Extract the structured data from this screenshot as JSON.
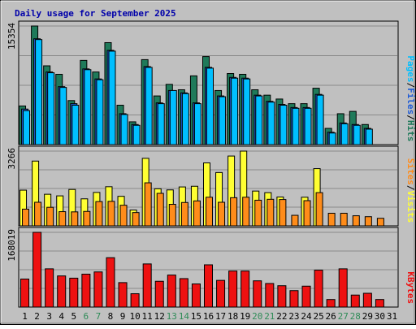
{
  "chart_data": {
    "type": "bar",
    "title": "Daily usage for September 2025",
    "colors": {
      "background": "#c0c0c0",
      "title": "#0000aa",
      "hits": "#1f7a5a",
      "files": "#1e9ee6",
      "pages": "#00bfff",
      "visits": "#ffff33",
      "sites": "#ff8c1a",
      "kbytes": "#ee1111",
      "weekend_label": "#2e8b57",
      "weekday_label": "#000000"
    },
    "categories": [
      "1",
      "2",
      "3",
      "4",
      "5",
      "6",
      "7",
      "8",
      "9",
      "10",
      "11",
      "12",
      "13",
      "14",
      "15",
      "16",
      "17",
      "18",
      "19",
      "20",
      "21",
      "22",
      "23",
      "24",
      "25",
      "26",
      "27",
      "28",
      "29",
      "30",
      "31"
    ],
    "weekend_days": [
      "6",
      "7",
      "13",
      "14",
      "20",
      "21",
      "27",
      "28"
    ],
    "panels": [
      {
        "id": "hits-panel",
        "ymax_label": "15354",
        "ymax": 15354,
        "legend": [
          {
            "text": "Pages",
            "color": "#00bfff"
          },
          {
            "text": "/",
            "color": "#000000"
          },
          {
            "text": "Files",
            "color": "#1e5bd6"
          },
          {
            "text": "/",
            "color": "#000000"
          },
          {
            "text": "Hits",
            "color": "#1f7a5a"
          }
        ],
        "series": [
          {
            "name": "Hits",
            "color": "#1f7a5a",
            "values": [
              5000,
              15354,
              10200,
              9100,
              5700,
              10900,
              9400,
              13200,
              5100,
              2950,
              11000,
              6300,
              7800,
              7100,
              8900,
              11400,
              7000,
              9200,
              9100,
              7100,
              6400,
              5900,
              5300,
              5300,
              7300,
              2100,
              4000,
              4300,
              2600,
              0,
              0
            ]
          },
          {
            "name": "Files",
            "color": "#1e5bd6",
            "values": [
              4600,
              13700,
              9400,
              7500,
              5300,
              9800,
              8500,
              12200,
              4000,
              2600,
              10100,
              5400,
              7000,
              6700,
              5400,
              10000,
              6300,
              8700,
              8600,
              6400,
              5600,
              5200,
              4800,
              4800,
              6500,
              1600,
              2800,
              2600,
              2100,
              0,
              0
            ]
          },
          {
            "name": "Pages",
            "color": "#00bfff",
            "values": [
              4400,
              13600,
              9300,
              7400,
              5100,
              9700,
              8400,
              12100,
              3900,
              2500,
              10000,
              5300,
              7000,
              6600,
              5300,
              9900,
              6200,
              8600,
              8500,
              6300,
              5500,
              5100,
              4700,
              4700,
              6400,
              1500,
              2700,
              2500,
              2000,
              0,
              0
            ]
          }
        ]
      },
      {
        "id": "visits-panel",
        "ymax_label": "3266",
        "ymax": 3266,
        "legend": [
          {
            "text": "Sites",
            "color": "#ff8c1a"
          },
          {
            "text": "/",
            "color": "#000000"
          },
          {
            "text": "Visits",
            "color": "#ffff33"
          }
        ],
        "series": [
          {
            "name": "Visits",
            "color": "#ffff33",
            "values": [
              1560,
              2830,
              1380,
              1310,
              1590,
              1180,
              1460,
              1710,
              1290,
              690,
              2950,
              1620,
              1570,
              1700,
              1730,
              2750,
              2330,
              3050,
              3266,
              1520,
              1450,
              1260,
              0,
              1250,
              2500,
              0,
              0,
              0,
              0,
              0,
              0
            ]
          },
          {
            "name": "Sites",
            "color": "#ff8c1a",
            "values": [
              730,
              1030,
              810,
              620,
              610,
              630,
              1060,
              1070,
              900,
              580,
              1880,
              1420,
              940,
              1020,
              1090,
              1250,
              1030,
              1230,
              1250,
              1120,
              1160,
              1150,
              460,
              1100,
              1450,
              550,
              550,
              440,
              400,
              330,
              0
            ]
          }
        ]
      },
      {
        "id": "kbytes-panel",
        "ymax_label": "168019",
        "ymax": 168019,
        "legend": [
          {
            "text": "KBytes",
            "color": "#ee1111"
          }
        ],
        "series": [
          {
            "name": "KBytes",
            "color": "#ee1111",
            "values": [
              63000,
              168019,
              86000,
              70000,
              65000,
              74000,
              79000,
              111000,
              55000,
              30000,
              97000,
              58000,
              72000,
              64000,
              52000,
              95000,
              60000,
              81000,
              81000,
              59000,
              53000,
              48000,
              37000,
              47000,
              83000,
              17000,
              86000,
              27000,
              31000,
              17000,
              0
            ]
          }
        ]
      }
    ]
  }
}
